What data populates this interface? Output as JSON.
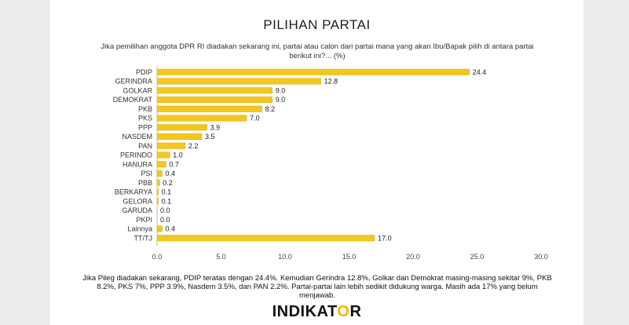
{
  "title": "PILIHAN PARTAI",
  "subtitle": "Jika pemilihan anggota DPR RI diadakan sekarang ini, partai atau calon dari partai mana yang akan Ibu/Bapak pilih di antara partai berikut ini?... (%)",
  "caption": "Jika Pileg diadakan sekarang, PDIP teratas dengan 24.4%. Kemudian Gerindra 12.8%, Golkar dan Demokrat masing-masing sekitar  9%, PKB 8.2%, PKS 7%, PPP 3.9%, Nasdem 3.5%, dan PAN 2.2%. Partai-partai lain lebih sedikit didukung warga. Masih ada 17% yang belum menjawab.",
  "logo": {
    "text_before": "INDIKAT",
    "text_o": "O",
    "text_after": "R"
  },
  "colors": {
    "bar": "#F2C81E",
    "bar_stroke": "#D9AE00",
    "axis": "#BBBBBB"
  },
  "chart_data": {
    "type": "bar",
    "orientation": "horizontal",
    "categories": [
      "PDIP",
      "GERINDRA",
      "GOLKAR",
      "DEMOKRAT",
      "PKB",
      "PKS",
      "PPP",
      "NASDEM",
      "PAN",
      "PERINDO",
      "HANURA",
      "PSI",
      "PBB",
      "BERKARYA",
      "GELORA",
      "GARUDA",
      "PKPI",
      "Lainnya",
      "TT/TJ"
    ],
    "values": [
      24.4,
      12.8,
      9.0,
      9.0,
      8.2,
      7.0,
      3.9,
      3.5,
      2.2,
      1.0,
      0.7,
      0.4,
      0.2,
      0.1,
      0.1,
      0.0,
      0.0,
      0.4,
      17.0
    ],
    "value_labels": [
      "24.4",
      "12.8",
      "9.0",
      "9.0",
      "8.2",
      "7.0",
      "3.9",
      "3.5",
      "2.2",
      "1.0",
      "0.7",
      "0.4",
      "0.2",
      "0.1",
      "0.1",
      "0.0",
      "0.0",
      "0.4",
      "17.0"
    ],
    "xlim": [
      0,
      30
    ],
    "xticks": [
      0,
      5,
      10,
      15,
      20,
      25,
      30
    ],
    "xtick_labels": [
      "0.0",
      "5.0",
      "10.0",
      "15.0",
      "20.0",
      "25.0",
      "30.0"
    ],
    "xlabel": "",
    "ylabel": "",
    "grid": false,
    "legend": "none"
  }
}
